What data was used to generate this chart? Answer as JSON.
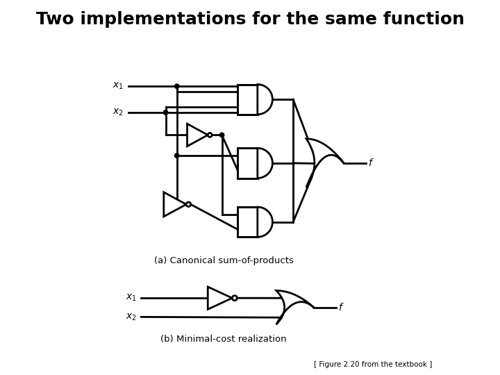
{
  "title": "Two implementations for the same function",
  "title_fontsize": 18,
  "caption_a": "(a) Canonical sum-of-products",
  "caption_b": "(b) Minimal-cost realization",
  "footnote": "[ Figure 2.20 from the textbook ]",
  "bg_color": "#ffffff",
  "fg_color": "#000000",
  "line_width": 2.0
}
